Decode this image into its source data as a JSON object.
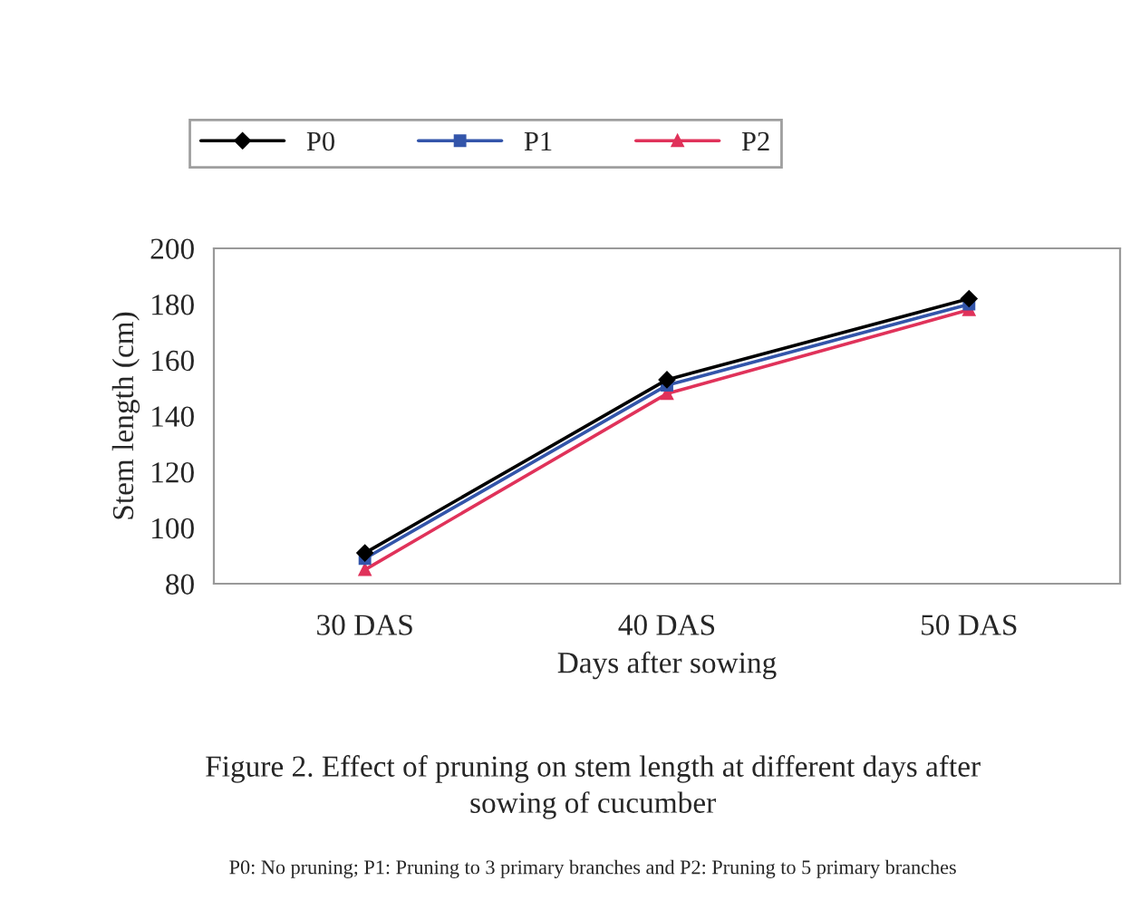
{
  "chart_data": {
    "type": "line",
    "xlabel": "Days after sowing",
    "ylabel": "Stem length (cm)",
    "categories": [
      "30 DAS",
      "40 DAS",
      "50 DAS"
    ],
    "series": [
      {
        "name": "P0",
        "color": "#000000",
        "values": [
          91,
          153,
          182
        ],
        "marker": "diamond"
      },
      {
        "name": "P1",
        "color": "#3355aa",
        "values": [
          89,
          151,
          180
        ],
        "marker": "square"
      },
      {
        "name": "P2",
        "color": "#e0325a",
        "values": [
          85,
          148,
          178
        ],
        "marker": "triangle"
      }
    ],
    "ylim": [
      80,
      200
    ],
    "yticks": [
      80,
      100,
      120,
      140,
      160,
      180,
      200
    ],
    "grid": false,
    "legend": "top",
    "annotations": [
      "Figure 2. Effect of pruning on stem length at different days after\nsowing of cucumber",
      "P0: No pruning; P1: Pruning to 3 primary branches and P2: Pruning to 5 primary branches"
    ]
  }
}
